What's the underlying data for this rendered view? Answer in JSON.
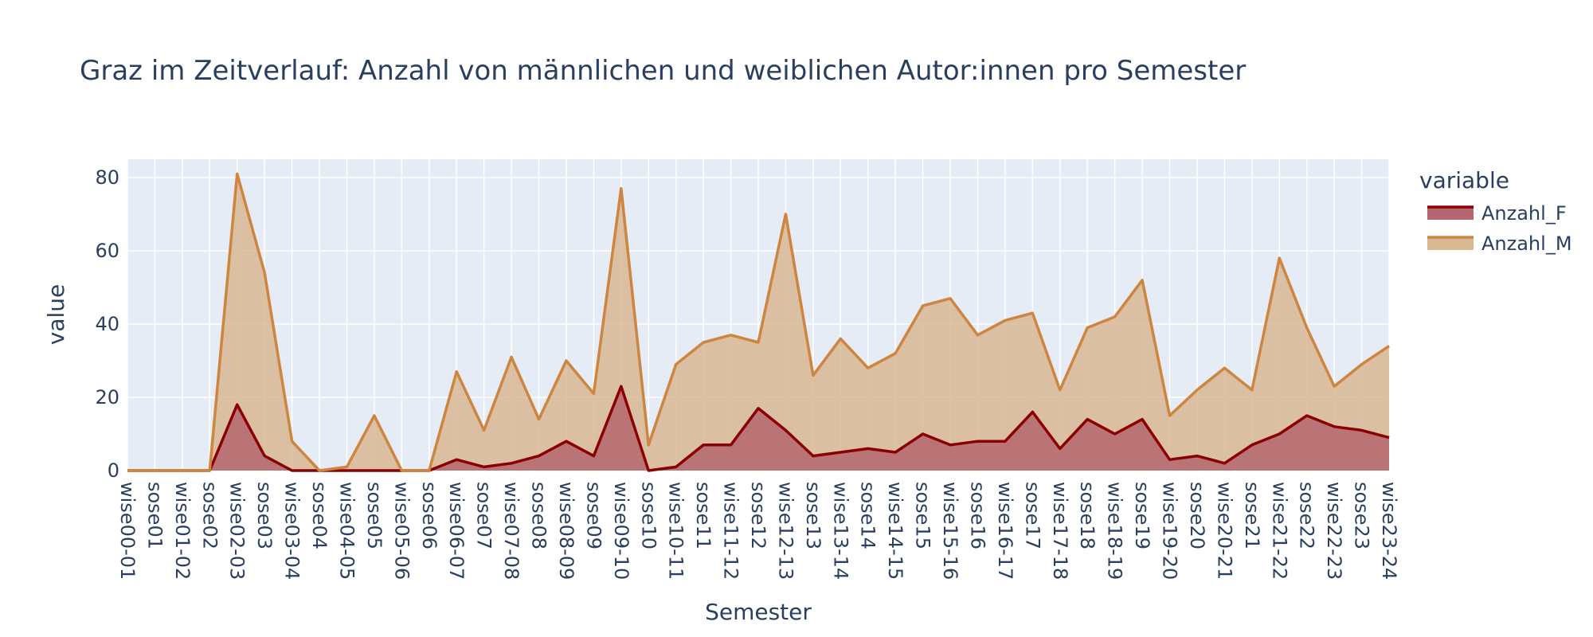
{
  "chart_data": {
    "type": "area",
    "title": "Graz im Zeitverlauf: Anzahl von männlichen und weiblichen Autor:innen pro Semester",
    "xlabel": "Semester",
    "ylabel": "value",
    "legend_title": "variable",
    "legend_position": "right",
    "grid": true,
    "stacked": false,
    "ylim": [
      0,
      85
    ],
    "yticks": [
      0,
      20,
      40,
      60,
      80
    ],
    "categories": [
      "wise00-01",
      "sose01",
      "wise01-02",
      "sose02",
      "wise02-03",
      "sose03",
      "wise03-04",
      "sose04",
      "wise04-05",
      "sose05",
      "wise05-06",
      "sose06",
      "wise06-07",
      "sose07",
      "wise07-08",
      "sose08",
      "wise08-09",
      "sose09",
      "wise09-10",
      "sose10",
      "wise10-11",
      "sose11",
      "wise11-12",
      "sose12",
      "wise12-13",
      "sose13",
      "wise13-14",
      "sose14",
      "wise14-15",
      "sose15",
      "wise15-16",
      "sose16",
      "wise16-17",
      "sose17",
      "wise17-18",
      "sose18",
      "wise18-19",
      "sose19",
      "wise19-20",
      "sose20",
      "wise20-21",
      "sose21",
      "wise21-22",
      "sose22",
      "wise22-23",
      "sose23",
      "wise23-24"
    ],
    "series": [
      {
        "name": "Anzahl_F",
        "line_color": "#8b0000",
        "fill_color": "#b5666e",
        "values": [
          0,
          0,
          0,
          0,
          18,
          4,
          0,
          0,
          0,
          0,
          0,
          0,
          3,
          1,
          2,
          4,
          8,
          4,
          23,
          0,
          1,
          7,
          7,
          17,
          11,
          4,
          5,
          6,
          5,
          10,
          7,
          8,
          8,
          16,
          6,
          14,
          10,
          14,
          3,
          4,
          2,
          7,
          10,
          15,
          12,
          11,
          9
        ]
      },
      {
        "name": "Anzahl_M",
        "line_color": "#cd853f",
        "fill_color": "#d8b793",
        "values": [
          0,
          0,
          0,
          0,
          81,
          54,
          8,
          0,
          1,
          15,
          0,
          0,
          27,
          11,
          31,
          14,
          30,
          21,
          77,
          7,
          29,
          35,
          37,
          35,
          70,
          26,
          36,
          28,
          32,
          45,
          47,
          37,
          41,
          43,
          22,
          39,
          42,
          52,
          15,
          22,
          28,
          22,
          58,
          39,
          23,
          29,
          34
        ]
      }
    ]
  }
}
